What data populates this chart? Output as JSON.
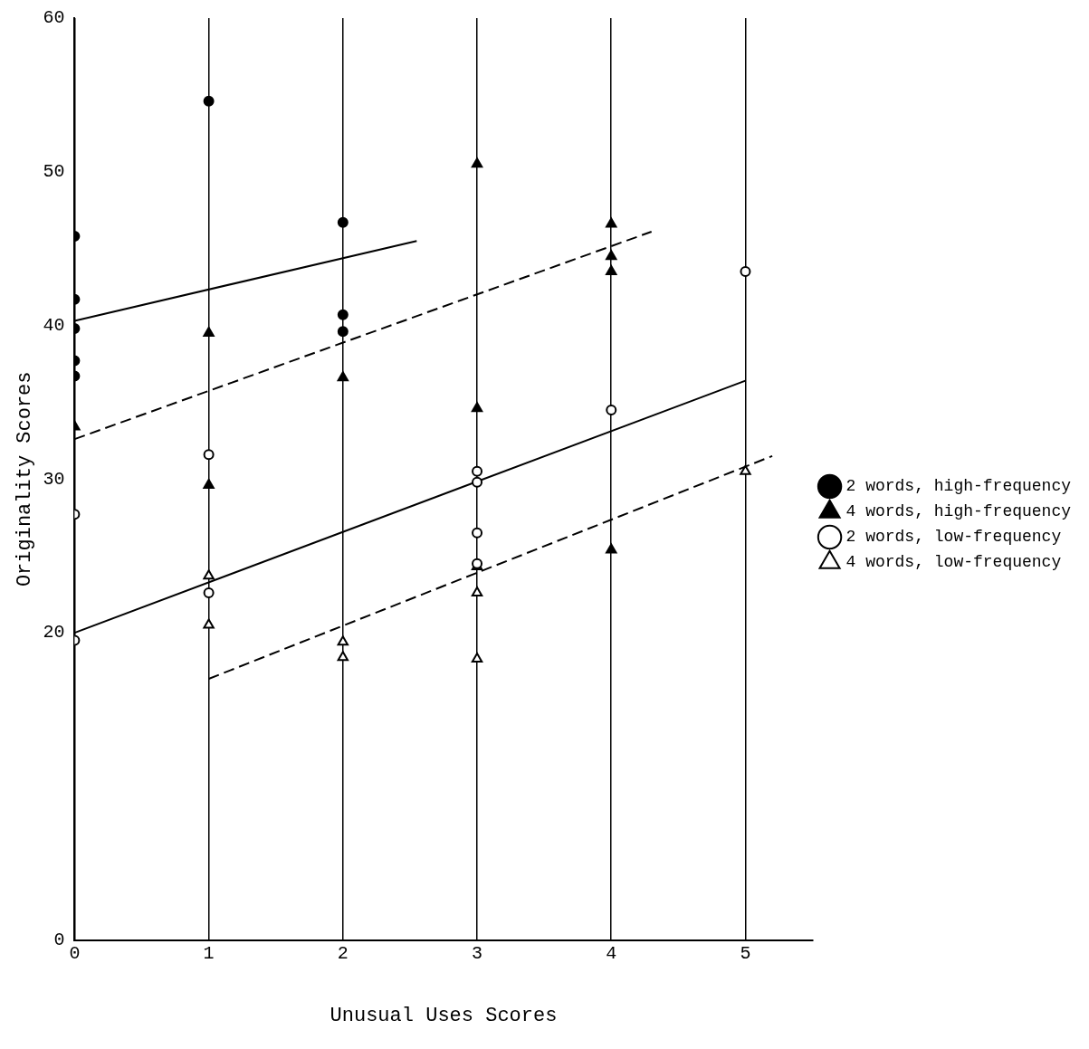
{
  "chart_data": {
    "type": "scatter",
    "xlabel": "Unusual Uses Scores",
    "ylabel": "Originality Scores",
    "xlim": [
      0,
      5.5
    ],
    "xticks": [
      0,
      1,
      2,
      3,
      4,
      5
    ],
    "ylim": [
      0,
      60
    ],
    "yticks": [
      0,
      20,
      30,
      40,
      50,
      60
    ],
    "grid": "x",
    "legend": "right",
    "series": [
      {
        "name": "2 words, high-frequency",
        "marker": "circle",
        "line_style": "solid",
        "color": "#000000",
        "x": [
          0,
          0,
          0,
          0,
          0,
          1,
          2,
          2,
          2
        ],
        "values": [
          45.8,
          41.7,
          39.8,
          37.7,
          36.7,
          54.6,
          46.7,
          40.7,
          39.6
        ]
      },
      {
        "name": "4 words, high-frequency",
        "marker": "triangle",
        "line_style": "dashed",
        "color": "#000000",
        "x": [
          0,
          1,
          1,
          2,
          3,
          3,
          4,
          4,
          4,
          4
        ],
        "values": [
          33.4,
          39.5,
          29.6,
          36.6,
          50.5,
          34.6,
          46.6,
          44.5,
          43.5,
          25.4
        ]
      },
      {
        "name": "2 words, low-frequency",
        "marker": "circle",
        "line_style": "solid",
        "color": "#ffffff",
        "x": [
          0,
          0,
          1,
          1,
          3,
          3,
          3,
          3,
          4,
          5
        ],
        "values": [
          27.7,
          19.5,
          31.6,
          22.6,
          30.5,
          29.8,
          26.5,
          24.5,
          34.5,
          43.5
        ]
      },
      {
        "name": "4 words, low-frequency",
        "marker": "triangle",
        "line_style": "dashed",
        "color": "#ffffff",
        "x": [
          1,
          1,
          2,
          2,
          3,
          3,
          3,
          5
        ],
        "values": [
          23.7,
          20.5,
          19.4,
          18.4,
          24.3,
          22.6,
          18.3,
          30.5
        ]
      },
      {
        "type": "line",
        "marker": "none",
        "line_style": "solid",
        "color": "#000000",
        "x": [
          0,
          2.55
        ],
        "values": [
          40.3,
          45.5
        ]
      },
      {
        "type": "line",
        "marker": "none",
        "line_style": "dashed",
        "color": "#000000",
        "x": [
          0,
          4.3
        ],
        "values": [
          32.6,
          46.1
        ]
      },
      {
        "type": "line",
        "marker": "none",
        "line_style": "solid",
        "color": "#000000",
        "x": [
          0,
          5
        ],
        "values": [
          20.0,
          36.4
        ]
      },
      {
        "type": "line",
        "marker": "none",
        "line_style": "dashed",
        "color": "#000000",
        "x": [
          1,
          5.2
        ],
        "values": [
          17.0,
          31.5
        ]
      }
    ]
  }
}
